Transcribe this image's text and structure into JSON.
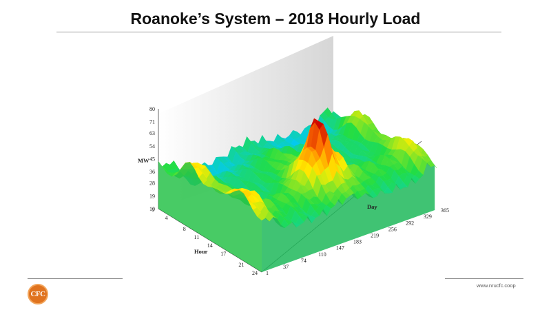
{
  "slide": {
    "title": "Roanoke’s System – 2018 Hourly Load",
    "footer_url": "www.nrucfc.coop",
    "logo_text": "CFC",
    "accent_color": "#e0731f"
  },
  "chart_data": {
    "type": "surface",
    "title": "Roanoke’s System – 2018 Hourly Load",
    "xlabel": "Day",
    "ylabel": "Hour",
    "zlabel": "MW",
    "x_ticks": [
      "1",
      "37",
      "74",
      "110",
      "147",
      "183",
      "219",
      "256",
      "292",
      "329",
      "365"
    ],
    "y_ticks": [
      "1",
      "4",
      "8",
      "11",
      "14",
      "17",
      "21",
      "24"
    ],
    "z_ticks": [
      "10",
      "19",
      "28",
      "36",
      "45",
      "54",
      "63",
      "71",
      "80"
    ],
    "xlim": [
      1,
      365
    ],
    "ylim": [
      1,
      24
    ],
    "zlim": [
      10,
      80
    ],
    "colormap": [
      "#2233cc",
      "#00c8ff",
      "#22dd44",
      "#ffee00",
      "#ff7700",
      "#cc0000"
    ],
    "peak": {
      "day": 183,
      "hour": 17,
      "mw": 80
    }
  }
}
